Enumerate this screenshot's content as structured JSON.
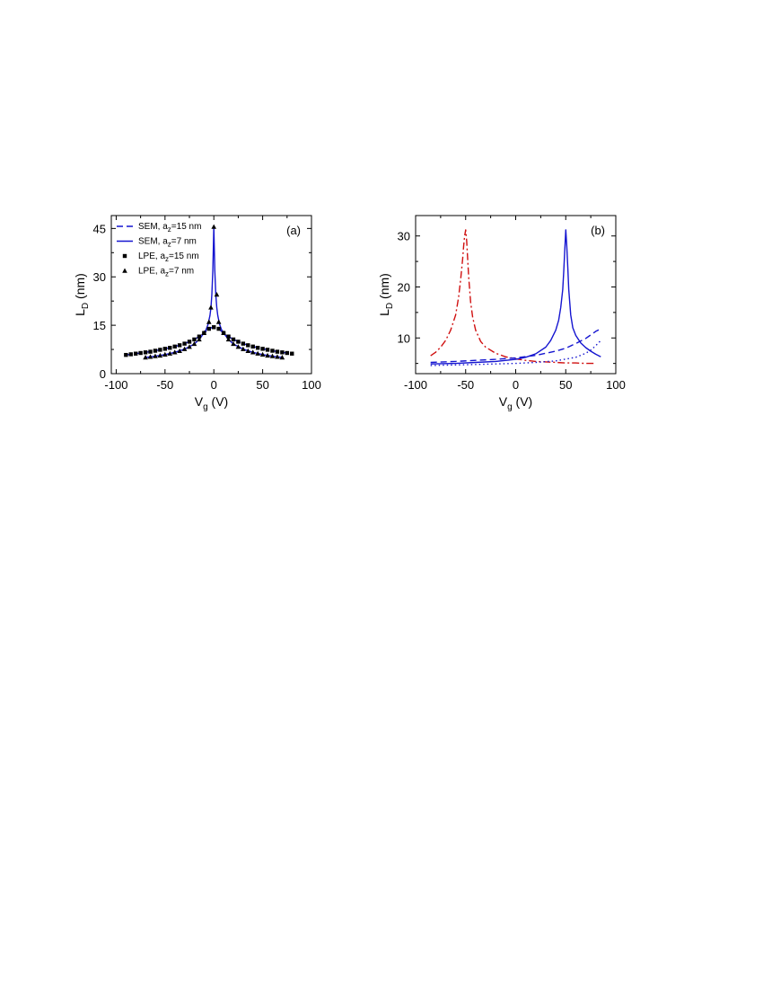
{
  "chart_data": [
    {
      "type": "line",
      "panel_label": "(a)",
      "xlabel": {
        "main": "V",
        "sub": "g",
        "unit": " (V)"
      },
      "ylabel": {
        "main": "L",
        "sub": "D",
        "unit": " (nm)"
      },
      "xlim": [
        -105,
        100
      ],
      "ylim": [
        0,
        49
      ],
      "xticks": [
        -100,
        -50,
        0,
        50,
        100
      ],
      "yticks": [
        0,
        15,
        30,
        45
      ],
      "legend_position": "top-left",
      "series": [
        {
          "name": "SEM, a",
          "name_sub": "z",
          "name_rest": "=15 nm",
          "style": "dashed",
          "color": "#1515d0",
          "x": [
            -90,
            -80,
            -70,
            -60,
            -50,
            -40,
            -30,
            -20,
            -15,
            -10,
            -8,
            -6,
            -4,
            -2,
            0,
            2,
            4,
            6,
            8,
            10,
            15,
            20,
            30,
            40,
            50,
            60,
            70,
            80
          ],
          "y": [
            5.8,
            6.2,
            6.6,
            7.1,
            7.7,
            8.4,
            9.3,
            10.6,
            11.5,
            12.6,
            13.1,
            13.6,
            14.0,
            14.3,
            14.4,
            14.3,
            14.0,
            13.6,
            13.1,
            12.6,
            11.5,
            10.6,
            9.3,
            8.4,
            7.7,
            7.1,
            6.6,
            6.2
          ]
        },
        {
          "name": "SEM, a",
          "name_sub": "z",
          "name_rest": "=7 nm",
          "style": "solid",
          "color": "#1515d0",
          "x": [
            -70,
            -60,
            -50,
            -40,
            -30,
            -20,
            -15,
            -10,
            -8,
            -6,
            -4,
            -3,
            -2,
            -1,
            0,
            1,
            2,
            3,
            4,
            6,
            8,
            10,
            15,
            20,
            30,
            40,
            50,
            60,
            70
          ],
          "y": [
            5.0,
            5.4,
            5.9,
            6.6,
            7.6,
            9.2,
            10.6,
            12.6,
            13.6,
            15.2,
            18.0,
            20.5,
            24.5,
            32.0,
            45.5,
            32.0,
            24.5,
            20.5,
            18.0,
            15.2,
            13.6,
            12.6,
            10.6,
            9.2,
            7.6,
            6.6,
            5.9,
            5.4,
            5.0
          ]
        },
        {
          "name": "LPE, a",
          "name_sub": "z",
          "name_rest": "=15 nm",
          "style": "square",
          "x": [
            -90,
            -85,
            -80,
            -75,
            -70,
            -65,
            -60,
            -55,
            -50,
            -45,
            -40,
            -35,
            -30,
            -25,
            -20,
            -15,
            -10,
            -5,
            0,
            5,
            10,
            15,
            20,
            25,
            30,
            35,
            40,
            45,
            50,
            55,
            60,
            65,
            70,
            75,
            80
          ],
          "y": [
            5.8,
            6.0,
            6.2,
            6.4,
            6.6,
            6.8,
            7.1,
            7.4,
            7.7,
            8.0,
            8.4,
            8.8,
            9.3,
            9.9,
            10.6,
            11.5,
            12.6,
            13.9,
            14.4,
            13.9,
            12.6,
            11.5,
            10.6,
            9.9,
            9.3,
            8.8,
            8.4,
            8.0,
            7.7,
            7.4,
            7.1,
            6.8,
            6.6,
            6.4,
            6.2
          ]
        },
        {
          "name": "LPE, a",
          "name_sub": "z",
          "name_rest": "=7 nm",
          "style": "triangle",
          "x": [
            -70,
            -65,
            -60,
            -55,
            -50,
            -45,
            -40,
            -35,
            -30,
            -25,
            -20,
            -15,
            -10,
            -5,
            -3,
            0,
            3,
            5,
            10,
            15,
            20,
            25,
            30,
            35,
            40,
            45,
            50,
            55,
            60,
            65,
            70
          ],
          "y": [
            5.0,
            5.2,
            5.4,
            5.6,
            5.9,
            6.2,
            6.6,
            7.0,
            7.6,
            8.3,
            9.2,
            10.6,
            12.6,
            16.0,
            20.5,
            45.5,
            24.5,
            16.0,
            12.6,
            10.6,
            9.2,
            8.3,
            7.6,
            7.0,
            6.6,
            6.2,
            5.9,
            5.6,
            5.4,
            5.2,
            5.0
          ]
        }
      ]
    },
    {
      "type": "line",
      "panel_label": "(b)",
      "xlabel": {
        "main": "V",
        "sub": "g",
        "unit": " (V)"
      },
      "ylabel": {
        "main": "L",
        "sub": "D",
        "unit": " (nm)"
      },
      "xlim": [
        -100,
        100
      ],
      "ylim": [
        3,
        34
      ],
      "xticks": [
        -100,
        -50,
        0,
        50,
        100
      ],
      "yticks": [
        10,
        20,
        30
      ],
      "series": [
        {
          "style": "dashdot",
          "color": "#d01010",
          "x": [
            -85,
            -80,
            -75,
            -70,
            -65,
            -60,
            -57,
            -55,
            -53,
            -52,
            -51,
            -50,
            -49,
            -48,
            -47,
            -45,
            -43,
            -40,
            -35,
            -30,
            -20,
            -10,
            0,
            10,
            20,
            30,
            40,
            50,
            60,
            70,
            80
          ],
          "y": [
            6.5,
            7.2,
            8.2,
            9.5,
            11.5,
            14.5,
            18.0,
            21.5,
            25.5,
            28.0,
            30.0,
            31.2,
            29.0,
            25.5,
            22.0,
            17.0,
            14.0,
            11.5,
            9.3,
            8.2,
            7.0,
            6.3,
            5.9,
            5.6,
            5.4,
            5.3,
            5.2,
            5.1,
            5.1,
            5.0,
            5.0
          ]
        },
        {
          "style": "solid",
          "color": "#1515d0",
          "x": [
            -85,
            -60,
            -40,
            -20,
            0,
            10,
            20,
            30,
            35,
            40,
            43,
            45,
            47,
            48,
            49,
            50,
            51,
            52,
            53,
            55,
            57,
            60,
            65,
            70,
            75,
            80,
            85
          ],
          "y": [
            4.9,
            5.0,
            5.2,
            5.4,
            5.8,
            6.2,
            6.9,
            8.2,
            9.5,
            11.5,
            13.5,
            16.0,
            19.5,
            23.0,
            27.0,
            31.2,
            28.0,
            24.0,
            19.5,
            14.5,
            12.0,
            10.5,
            9.0,
            8.1,
            7.4,
            6.8,
            6.3
          ]
        },
        {
          "style": "dashed",
          "color": "#1515d0",
          "x": [
            -85,
            -60,
            -40,
            -20,
            0,
            20,
            40,
            50,
            60,
            70,
            75,
            80,
            83
          ],
          "y": [
            5.2,
            5.4,
            5.6,
            5.8,
            6.1,
            6.6,
            7.4,
            8.0,
            8.9,
            9.9,
            10.6,
            11.3,
            11.6
          ]
        },
        {
          "style": "dotted",
          "color": "#1515d0",
          "x": [
            -85,
            -60,
            -40,
            -20,
            0,
            20,
            40,
            60,
            70,
            75,
            80,
            85
          ],
          "y": [
            4.6,
            4.7,
            4.8,
            4.9,
            5.0,
            5.2,
            5.5,
            6.2,
            7.0,
            7.6,
            8.5,
            9.5
          ]
        }
      ]
    }
  ]
}
